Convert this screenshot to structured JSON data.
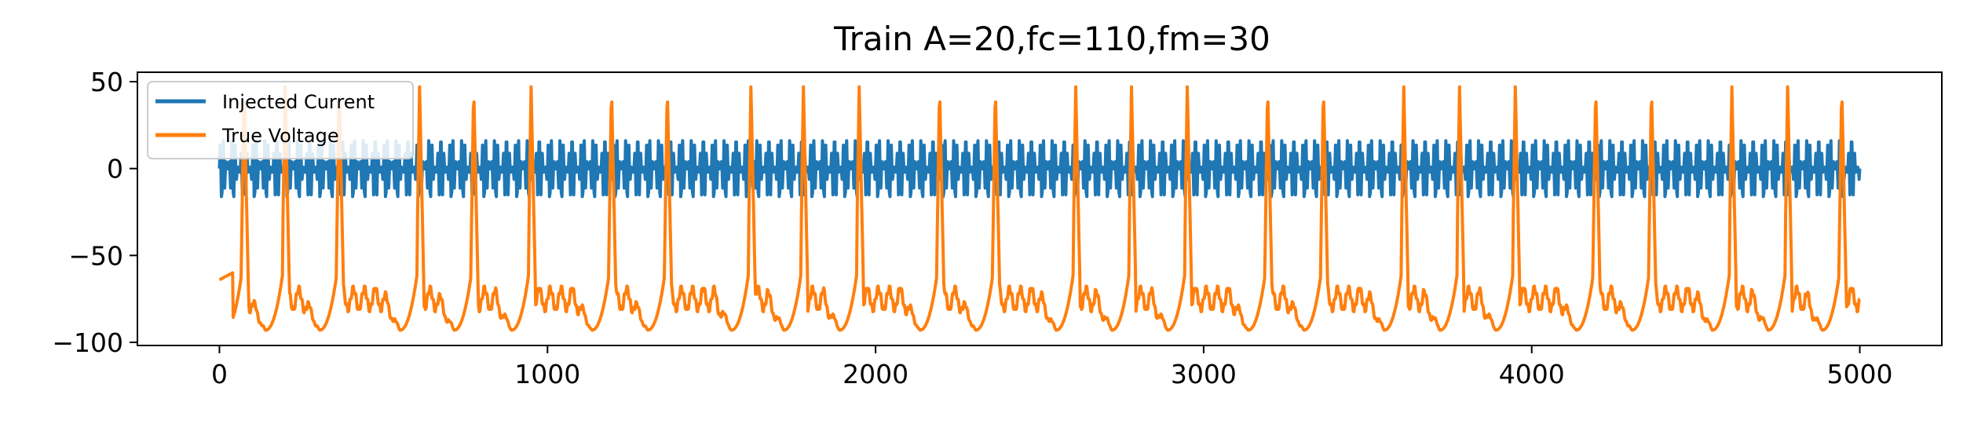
{
  "chart_data": {
    "type": "line",
    "title": "Train A=20,fc=110,fm=30",
    "xlabel": "",
    "ylabel": "",
    "xlim": [
      -250,
      5250
    ],
    "ylim": [
      -101,
      55
    ],
    "xticks": [
      0,
      1000,
      2000,
      3000,
      4000,
      5000
    ],
    "xtick_labels": [
      "0",
      "1000",
      "2000",
      "3000",
      "4000",
      "5000"
    ],
    "yticks": [
      50,
      0,
      -50,
      -100
    ],
    "ytick_labels": [
      "50",
      "0",
      "−50",
      "−100"
    ],
    "grid": false,
    "legend_position": "top-left",
    "series": [
      {
        "name": "Injected Current",
        "color": "#1f77b4",
        "model": "amplitude-modulated sine",
        "amplitude": 20,
        "carrier_hz": 110,
        "modulation_hz": 30,
        "x_range": [
          0,
          5000
        ]
      },
      {
        "name": "True Voltage",
        "color": "#ff7f0e",
        "resting_mV": -75,
        "spike_peak_mV": 47,
        "trough_mV": -93,
        "spike_times": [
          75,
          200,
          365,
          610,
          775,
          950,
          1195,
          1365,
          1620,
          1780,
          1950,
          2195,
          2365,
          2610,
          2780,
          2950,
          3195,
          3365,
          3610,
          3780,
          3950,
          4195,
          4365,
          4610,
          4780,
          4945
        ]
      }
    ]
  }
}
